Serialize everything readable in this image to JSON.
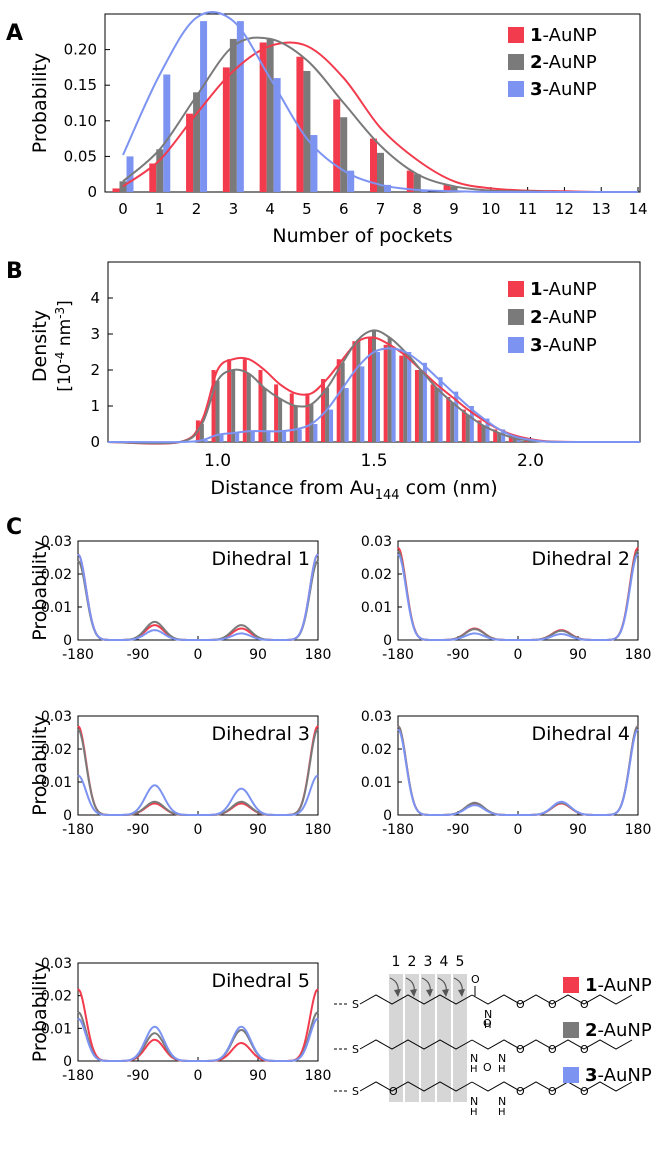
{
  "colors": {
    "s1": "#f23b4d",
    "s2": "#7a7a7a",
    "s3": "#7d93f2"
  },
  "series_names": [
    "1",
    "2",
    "3"
  ],
  "series_suffix": "-AuNP",
  "chart_data": [
    {
      "panel": "A",
      "type": "bar",
      "xlabel": "Number of pockets",
      "ylabel": "Probability",
      "ylim": [
        0,
        0.25
      ],
      "yticks": [
        0,
        0.05,
        0.1,
        0.15,
        0.2
      ],
      "ytick_labels": [
        "0",
        "0.05",
        "0.10",
        "0.15",
        "0.20"
      ],
      "categories": [
        "0",
        "1",
        "2",
        "3",
        "4",
        "5",
        "6",
        "7",
        "8",
        "9",
        "10",
        "11",
        "12",
        "13",
        "14"
      ],
      "legend_position": "top-right",
      "series": [
        {
          "name": "1",
          "values": [
            0.005,
            0.04,
            0.11,
            0.175,
            0.21,
            0.19,
            0.13,
            0.075,
            0.03,
            0.01,
            0.003,
            0.001,
            0,
            0,
            0
          ],
          "fit": [
            0.008,
            0.045,
            0.11,
            0.17,
            0.205,
            0.205,
            0.16,
            0.09,
            0.045,
            0.015,
            0.005,
            0.002,
            0.001,
            0,
            0
          ]
        },
        {
          "name": "2",
          "values": [
            0.015,
            0.06,
            0.14,
            0.215,
            0.215,
            0.17,
            0.105,
            0.055,
            0.025,
            0.007,
            0.002,
            0.001,
            0,
            0,
            0
          ],
          "fit": [
            0.015,
            0.06,
            0.135,
            0.205,
            0.215,
            0.185,
            0.125,
            0.065,
            0.025,
            0.008,
            0.002,
            0.001,
            0,
            0,
            0
          ]
        },
        {
          "name": "3",
          "values": [
            0.05,
            0.165,
            0.24,
            0.24,
            0.16,
            0.08,
            0.03,
            0.01,
            0.003,
            0.001,
            0,
            0,
            0,
            0,
            0
          ],
          "fit": [
            0.052,
            0.165,
            0.245,
            0.24,
            0.16,
            0.075,
            0.03,
            0.01,
            0.003,
            0.001,
            0,
            0,
            0,
            0,
            0
          ]
        }
      ]
    },
    {
      "panel": "B",
      "type": "bar",
      "xlabel_main": "Distance from Au",
      "xlabel_sub": "144",
      "xlabel_tail": " com (nm)",
      "ylabel_line1": "Density",
      "ylabel_line2": "[10",
      "ylabel_sup1": "-4",
      "ylabel_mid": " nm",
      "ylabel_sup2": "-3",
      "ylabel_end": "]",
      "xlim": [
        0.65,
        2.35
      ],
      "xticks": [
        1.0,
        1.5,
        2.0
      ],
      "xtick_labels": [
        "1.0",
        "1.5",
        "2.0"
      ],
      "ylim": [
        0,
        5
      ],
      "yticks": [
        0,
        1,
        2,
        3,
        4
      ],
      "ytick_labels": [
        "0",
        "1",
        "2",
        "3",
        "4"
      ],
      "legend_position": "top-right",
      "x": [
        0.95,
        1.0,
        1.05,
        1.1,
        1.15,
        1.2,
        1.25,
        1.3,
        1.35,
        1.4,
        1.45,
        1.5,
        1.55,
        1.6,
        1.65,
        1.7,
        1.75,
        1.8,
        1.85,
        1.9,
        1.95,
        2.0,
        2.05
      ],
      "series": [
        {
          "name": "1",
          "values": [
            0.6,
            2.0,
            2.3,
            2.3,
            2.0,
            1.6,
            1.35,
            1.35,
            1.75,
            2.3,
            2.8,
            2.9,
            2.7,
            2.4,
            2.0,
            1.6,
            1.25,
            0.9,
            0.6,
            0.35,
            0.18,
            0.08,
            0.02
          ]
        },
        {
          "name": "2",
          "values": [
            0.5,
            1.7,
            2.0,
            1.9,
            1.5,
            1.2,
            1.0,
            1.05,
            1.5,
            2.2,
            2.85,
            3.1,
            2.9,
            2.5,
            2.0,
            1.5,
            1.1,
            0.75,
            0.45,
            0.25,
            0.1,
            0.04,
            0.01
          ]
        },
        {
          "name": "3",
          "values": [
            0.05,
            0.2,
            0.25,
            0.3,
            0.3,
            0.3,
            0.35,
            0.5,
            0.9,
            1.5,
            2.1,
            2.5,
            2.6,
            2.5,
            2.2,
            1.8,
            1.4,
            1.0,
            0.65,
            0.35,
            0.15,
            0.06,
            0.01
          ]
        }
      ]
    },
    {
      "panel": "C",
      "type": "line",
      "title": "Dihedral 1",
      "ylabel": "Probability",
      "ylim": [
        0,
        0.03
      ],
      "yticks": [
        0,
        0.01,
        0.02,
        0.03
      ],
      "ytick_labels": [
        "0",
        "0.01",
        "0.02",
        "0.03"
      ],
      "xticks": [
        -180,
        -90,
        0,
        90,
        180
      ],
      "xtick_labels": [
        "-180",
        "-90",
        "0",
        "90",
        "180"
      ],
      "peak_width": [
        12,
        14
      ],
      "series": [
        {
          "name": "1",
          "peaks": [
            0.026,
            0.0045,
            0.0035
          ]
        },
        {
          "name": "2",
          "peaks": [
            0.024,
            0.0055,
            0.0045
          ]
        },
        {
          "name": "3",
          "peaks": [
            0.026,
            0.003,
            0.002
          ]
        }
      ]
    },
    {
      "panel": "C",
      "type": "line",
      "title": "Dihedral 2",
      "ylabel": "",
      "ylim": [
        0,
        0.03
      ],
      "yticks": [
        0,
        0.01,
        0.02,
        0.03
      ],
      "ytick_labels": [
        "0",
        "0.01",
        "0.02",
        "0.03"
      ],
      "xticks": [
        -180,
        -90,
        0,
        90,
        180
      ],
      "xtick_labels": [
        "-180",
        "-90",
        "0",
        "90",
        "180"
      ],
      "peak_width": [
        12,
        14
      ],
      "series": [
        {
          "name": "1",
          "peaks": [
            0.028,
            0.0035,
            0.003
          ]
        },
        {
          "name": "2",
          "peaks": [
            0.027,
            0.0033,
            0.0028
          ]
        },
        {
          "name": "3",
          "peaks": [
            0.026,
            0.002,
            0.0018
          ]
        }
      ]
    },
    {
      "panel": "C",
      "type": "line",
      "title": "Dihedral 3",
      "ylabel": "Probability",
      "ylim": [
        0,
        0.03
      ],
      "yticks": [
        0,
        0.01,
        0.02,
        0.03
      ],
      "ytick_labels": [
        "0",
        "0.01",
        "0.02",
        "0.03"
      ],
      "xticks": [
        -180,
        -90,
        0,
        90,
        180
      ],
      "xtick_labels": [
        "-180",
        "-90",
        "0",
        "90",
        "180"
      ],
      "peak_width": [
        12,
        14
      ],
      "series": [
        {
          "name": "1",
          "peaks": [
            0.027,
            0.0035,
            0.0035
          ]
        },
        {
          "name": "2",
          "peaks": [
            0.026,
            0.004,
            0.004
          ]
        },
        {
          "name": "3",
          "peaks": [
            0.012,
            0.009,
            0.008
          ]
        }
      ]
    },
    {
      "panel": "C",
      "type": "line",
      "title": "Dihedral 4",
      "ylabel": "",
      "ylim": [
        0,
        0.03
      ],
      "yticks": [
        0,
        0.01,
        0.02,
        0.03
      ],
      "ytick_labels": [
        "0",
        "0.01",
        "0.02",
        "0.03"
      ],
      "xticks": [
        -180,
        -90,
        0,
        90,
        180
      ],
      "xtick_labels": [
        "-180",
        "-90",
        "0",
        "90",
        "180"
      ],
      "peak_width": [
        12,
        14
      ],
      "series": [
        {
          "name": "1",
          "peaks": [
            0.027,
            0.0035,
            0.0035
          ]
        },
        {
          "name": "2",
          "peaks": [
            0.027,
            0.0037,
            0.0037
          ]
        },
        {
          "name": "3",
          "peaks": [
            0.026,
            0.003,
            0.004
          ]
        }
      ]
    },
    {
      "panel": "C",
      "type": "line",
      "title": "Dihedral 5",
      "ylabel": "Probability",
      "ylim": [
        0,
        0.03
      ],
      "yticks": [
        0,
        0.01,
        0.02,
        0.03
      ],
      "ytick_labels": [
        "0",
        "0.01",
        "0.02",
        "0.03"
      ],
      "xticks": [
        -180,
        -90,
        0,
        90,
        180
      ],
      "xtick_labels": [
        "-180",
        "-90",
        "0",
        "90",
        "180"
      ],
      "peak_width": [
        12,
        14
      ],
      "series": [
        {
          "name": "1",
          "peaks": [
            0.022,
            0.0065,
            0.0055
          ]
        },
        {
          "name": "2",
          "peaks": [
            0.015,
            0.0085,
            0.0095
          ]
        },
        {
          "name": "3",
          "peaks": [
            0.013,
            0.0105,
            0.0105
          ]
        }
      ]
    }
  ],
  "panel_labels": [
    "A",
    "B",
    "C"
  ],
  "schematic": {
    "dihedral_numbers": [
      "1",
      "2",
      "3",
      "4",
      "5"
    ],
    "atoms": {
      "S": "S",
      "O": "O",
      "N": "N",
      "H": "H"
    }
  }
}
